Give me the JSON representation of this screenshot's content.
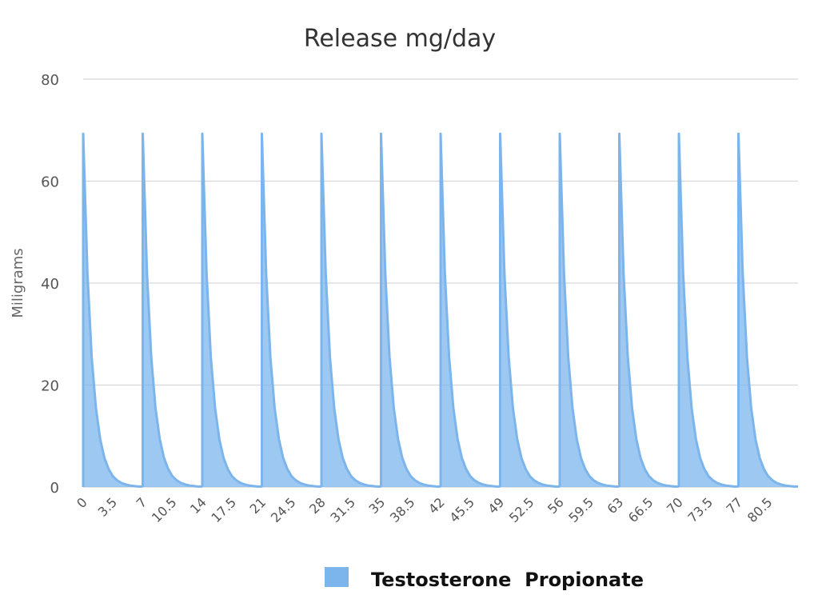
{
  "chart_data": {
    "type": "area",
    "title": "Release mg/day",
    "xlabel": "",
    "ylabel": "Miligrams",
    "ylim": [
      0,
      80
    ],
    "xlim": [
      0,
      84
    ],
    "yticks": [
      0,
      20,
      40,
      60,
      80
    ],
    "xticks": [
      "0",
      "3.5",
      "7",
      "10.5",
      "14",
      "17.5",
      "21",
      "24.5",
      "28",
      "31.5",
      "35",
      "38.5",
      "42",
      "45.5",
      "49",
      "52.5",
      "56",
      "59.5",
      "63",
      "66.5",
      "70",
      "73.5",
      "77",
      "80.5"
    ],
    "grid": true,
    "legend_position": "bottom",
    "colors": {
      "series_fill": "#7cb5ec",
      "series_line": "#7cb5ec"
    },
    "injection_days": [
      0,
      7,
      14,
      21,
      28,
      35,
      42,
      49,
      56,
      63,
      70,
      77
    ],
    "series": [
      {
        "name": "Testosterone  Propionate",
        "peak_value": 69.3,
        "cycle_x": [
          0,
          0.5,
          1,
          1.5,
          2,
          2.5,
          3,
          3.5,
          4,
          4.5,
          5,
          5.5,
          6,
          6.5,
          7
        ],
        "cycle_values": [
          69.3,
          42.0,
          25.5,
          15.5,
          9.4,
          5.7,
          3.5,
          2.1,
          1.3,
          0.8,
          0.5,
          0.3,
          0.2,
          0.1,
          0.1
        ]
      }
    ]
  }
}
